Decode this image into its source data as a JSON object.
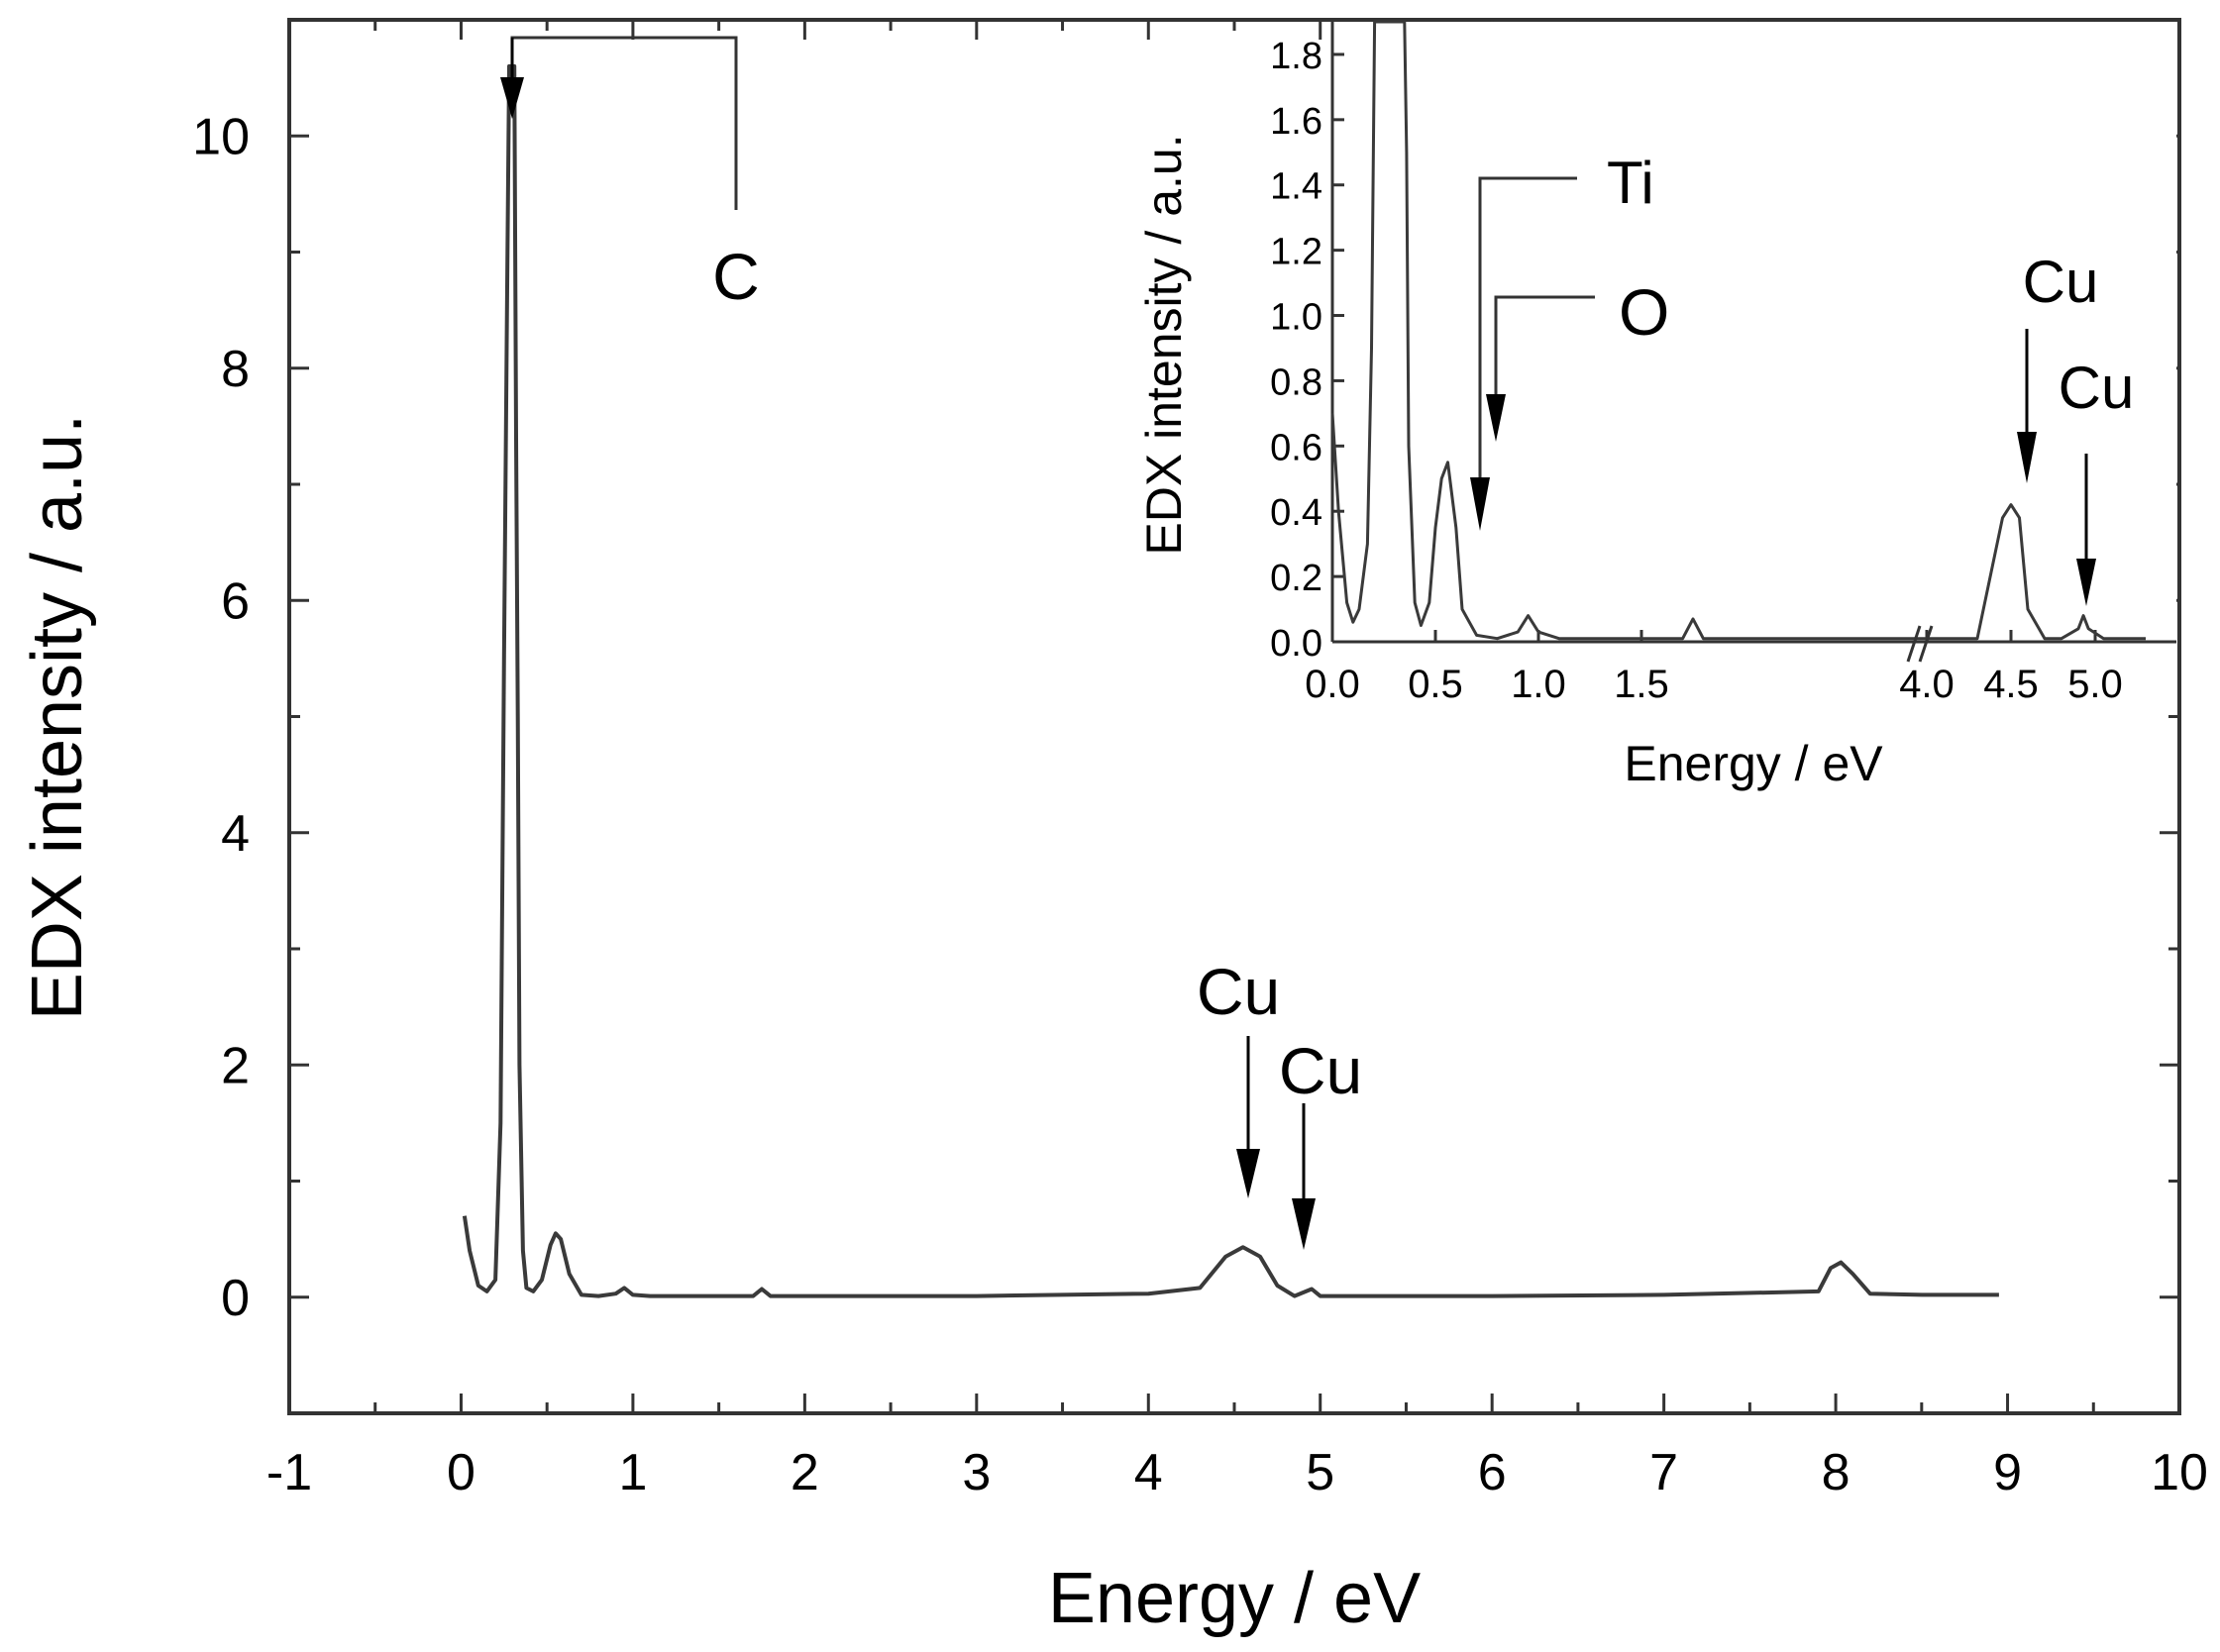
{
  "chart_data": [
    {
      "type": "line",
      "title": "",
      "xlabel": "Energy / eV",
      "ylabel": "EDX intensity / a.u.",
      "xlim": [
        -1,
        10
      ],
      "ylim": [
        -1,
        11
      ],
      "x_ticks": [
        -1,
        0,
        1,
        2,
        3,
        4,
        5,
        6,
        7,
        8,
        9,
        10
      ],
      "y_ticks": [
        0,
        2,
        4,
        6,
        8,
        10
      ],
      "grid": false,
      "series": [
        {
          "x": [
            0.02,
            0.05,
            0.1,
            0.15,
            0.2,
            0.23,
            0.25,
            0.27,
            0.28,
            0.29,
            0.3,
            0.31,
            0.32,
            0.33,
            0.34,
            0.36,
            0.38,
            0.42,
            0.47,
            0.52,
            0.55,
            0.58,
            0.63,
            0.7,
            0.8,
            0.9,
            0.95,
            1.0,
            1.1,
            1.5,
            1.7,
            1.75,
            1.8,
            2.0,
            3.0,
            4.0,
            4.3,
            4.45,
            4.55,
            4.65,
            4.75,
            4.85,
            4.95,
            5.0,
            5.5,
            6.0,
            7.0,
            7.9,
            7.97,
            8.03,
            8.1,
            8.2,
            8.5,
            8.95
          ],
          "y": [
            0.7,
            0.4,
            0.1,
            0.05,
            0.15,
            1.5,
            5.5,
            9.0,
            10.6,
            10.6,
            10.6,
            10.6,
            7.4,
            5.0,
            2.0,
            0.4,
            0.08,
            0.05,
            0.15,
            0.45,
            0.55,
            0.5,
            0.2,
            0.02,
            0.01,
            0.03,
            0.08,
            0.02,
            0.01,
            0.01,
            0.01,
            0.07,
            0.01,
            0.01,
            0.01,
            0.03,
            0.08,
            0.35,
            0.43,
            0.35,
            0.1,
            0.01,
            0.07,
            0.01,
            0.01,
            0.01,
            0.02,
            0.05,
            0.25,
            0.3,
            0.2,
            0.03,
            0.02,
            0.02
          ]
        }
      ],
      "annotations": [
        {
          "text": "C",
          "x": 0.3,
          "y": 10.6
        },
        {
          "text": "Cu",
          "x": 4.58,
          "y": 0.45
        },
        {
          "text": "Cu",
          "x": 4.92,
          "y": 0.1
        }
      ]
    },
    {
      "type": "line",
      "title": "",
      "xlabel": "Energy / eV",
      "ylabel": "EDX intensity / a.u.",
      "xlim": [
        0.0,
        5.0
      ],
      "ylim": [
        0.0,
        1.9
      ],
      "x_ticks": [
        "0.0",
        "0.5",
        "1.0",
        "1.5",
        "4.0",
        "4.5",
        "5.0"
      ],
      "y_ticks": [
        "0.0",
        "0.2",
        "0.4",
        "0.6",
        "0.8",
        "1.0",
        "1.2",
        "1.4",
        "1.6",
        "1.8"
      ],
      "axis_break": "between 1.5 and 4.0",
      "grid": false,
      "series": [
        {
          "x": [
            0.0,
            0.03,
            0.07,
            0.1,
            0.13,
            0.17,
            0.19,
            0.205,
            0.22,
            0.35,
            0.36,
            0.37,
            0.4,
            0.43,
            0.47,
            0.5,
            0.53,
            0.56,
            0.6,
            0.63,
            0.7,
            0.8,
            0.9,
            0.95,
            1.0,
            1.1,
            1.5,
            1.7,
            1.75,
            1.8,
            4.0,
            4.3,
            4.45,
            4.5,
            4.55,
            4.6,
            4.7,
            4.8,
            4.9,
            4.93,
            4.96,
            5.05,
            5.3
          ],
          "y": [
            0.7,
            0.4,
            0.12,
            0.06,
            0.1,
            0.3,
            0.9,
            1.9,
            1.9,
            1.9,
            1.5,
            0.6,
            0.12,
            0.05,
            0.12,
            0.35,
            0.5,
            0.55,
            0.35,
            0.1,
            0.02,
            0.01,
            0.03,
            0.08,
            0.03,
            0.01,
            0.01,
            0.01,
            0.07,
            0.01,
            0.01,
            0.01,
            0.38,
            0.42,
            0.38,
            0.1,
            0.01,
            0.01,
            0.04,
            0.08,
            0.04,
            0.01,
            0.01
          ]
        }
      ],
      "annotations": [
        {
          "text": "Ti",
          "x": 0.5,
          "y": 0.35
        },
        {
          "text": "O",
          "x": 0.56,
          "y": 0.55
        },
        {
          "text": "Cu",
          "x": 4.5,
          "y": 0.45
        },
        {
          "text": "Cu",
          "x": 4.93,
          "y": 0.1
        }
      ]
    }
  ]
}
